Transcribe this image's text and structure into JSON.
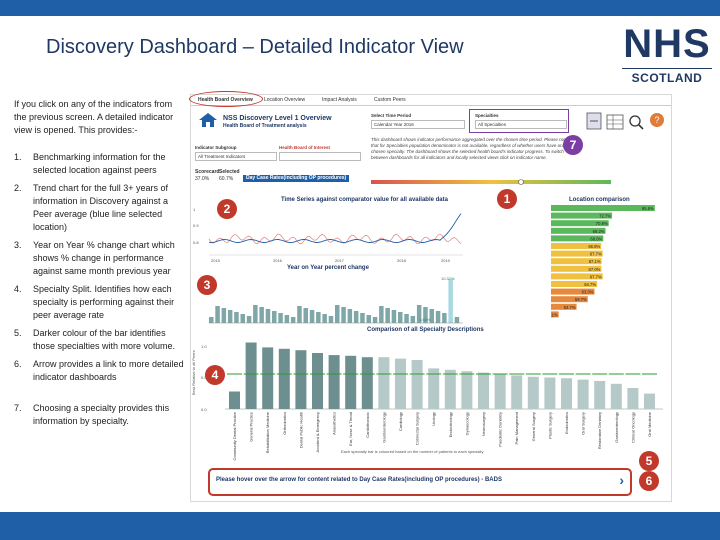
{
  "slide": {
    "title": "Discovery Dashboard – Detailed Indicator View",
    "logo_main": "NHS",
    "logo_sub": "SCOTLAND",
    "brand_color": "#1e5fa8"
  },
  "intro": "If you click on any of the indicators from the previous screen.  A detailed indicator view is opened.  This provides:-",
  "points": [
    {
      "n": "1.",
      "text": "Benchmarking information for the selected location against peers"
    },
    {
      "n": "2.",
      "text": "Trend chart for the full 3+ years of information in Discovery against a Peer average (blue line selected location)"
    },
    {
      "n": "3.",
      "text": "Year on Year % change chart which shows % change in performance against same month previous year"
    },
    {
      "n": "4.",
      "text": "Specialty Split.  Identifies how each specialty is performing against their peer average rate"
    },
    {
      "n": "5.",
      "text": "Darker colour of the bar identifies those specialties with more volume."
    },
    {
      "n": "6.",
      "text": "Arrow provides a link to more detailed indicator dashboards"
    },
    {
      "n": "7.",
      "text": "Choosing a specialty provides this information by specialty."
    }
  ],
  "dashboard": {
    "tabs": [
      "Health Board Overview",
      "Location Overview",
      "Impact Analysis",
      "Custom Peers"
    ],
    "header_title": "NSS Discovery Level 1 Overview",
    "header_sub": "Health Board of Treatment analysis",
    "select_time_label": "Select Time Period",
    "select_time_value": "Calendar Year 2016",
    "specialties_label": "Specialties",
    "specialties_value": "All Specialties",
    "indicator_label": "Indicator Subgroup",
    "indicator_value": "All Treatment Indicators",
    "hb_label": "Health Board of Interest",
    "scorecard_label": "Scorecard",
    "selected_label": "Selected",
    "score_a": "37.0%",
    "score_b": "60.7%",
    "indicator_name": "Day Case Rates(including OP procedures)",
    "blurb": "This dashboard shows indicator performance aggregated over the chosen time period. Please note that for Specialties population denominator is not available, regardless of whether users have only chosen specialty. The dashboard shows the selected health board’s indicator progress. To switch between dashboards for all indicators and locally selected views click on indicator name.",
    "trend_title": "Time Series against comparator value for all available data",
    "trend_years": [
      "2015",
      "2016",
      "2017",
      "2018",
      "2019"
    ],
    "trend_y": [
      "1",
      "0.9",
      "0.8"
    ],
    "yoy_title": "Year on Year percent change",
    "yoy_label_high": "10.37%",
    "yoy_label_low": "1.64%",
    "location_title": "Location comparison",
    "location_values": [
      "95.6%",
      "72.7%",
      "70.9%",
      "69.2%",
      "68.0%",
      "66.9%",
      "67.7%",
      "67.1%",
      "67.0%",
      "67.7%",
      "64.7%",
      "63.3%",
      "59.7%",
      "53.7%",
      "44.1%"
    ],
    "spec_title": "Comparison of all Specialty Descriptions",
    "spec_ylabel": "Best Relative to all Peers",
    "spec_y": [
      "1.0",
      "0.5",
      "0.0"
    ],
    "specialties": [
      "Community Dental Practice",
      "General Practice",
      "Rehabilitation Medicine",
      "Orthodontics",
      "Dental Public Health",
      "Accident & Emergency",
      "Anaesthetics",
      "Ear, Nose & Throat",
      "Cardiothoracic",
      "Gastroenterology",
      "Cardiology",
      "Colorectal Surgery",
      "Urology",
      "Endocrinology",
      "Gynaecology",
      "Neurosurgery",
      "Paediatric Dentistry",
      "Pain Management",
      "General Surgery",
      "Plastic Surgery",
      "Endodontics",
      "Oral Surgery",
      "Restorative Dentistry",
      "Gastroenterology",
      "Clinical Oncology",
      "Oral Medicine"
    ],
    "spec_values": [
      0.25,
      0.95,
      0.88,
      0.86,
      0.84,
      0.8,
      0.77,
      0.76,
      0.74,
      0.74,
      0.72,
      0.7,
      0.58,
      0.56,
      0.54,
      0.52,
      0.5,
      0.48,
      0.46,
      0.45,
      0.44,
      0.42,
      0.4,
      0.36,
      0.3,
      0.22
    ],
    "spec_note": "Each specialty bar is coloured based on the number of patients to each specialty",
    "hover_text": "Please hover over the arrow for content related to Day Case Rates(including OP procedures) - BADS",
    "badges": [
      "1",
      "2",
      "3",
      "4",
      "5",
      "6",
      "7"
    ]
  }
}
